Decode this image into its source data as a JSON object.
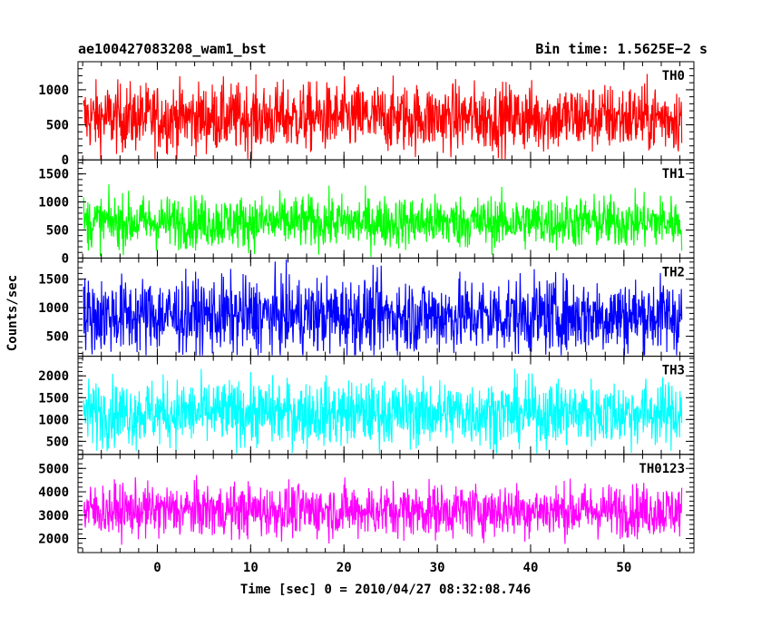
{
  "header": {
    "left": "ae100427083208_wam1_bst",
    "right": "Bin time: 1.5625E−2 s"
  },
  "chart_data": [
    {
      "type": "line",
      "panel": "TH0",
      "color": "#ff0000",
      "x_range": [
        -8.5,
        57.5
      ],
      "x_start": -7.9,
      "x_end": 56.2,
      "ylim": [
        0,
        1400
      ],
      "yticks": [
        0,
        500,
        1000
      ],
      "base": 600,
      "noise": 240,
      "clip_top": true,
      "series": [
        {
          "name": "TH0"
        }
      ]
    },
    {
      "type": "line",
      "panel": "TH1",
      "color": "#00ff00",
      "x_range": [
        -8.5,
        57.5
      ],
      "x_start": -7.9,
      "x_end": 56.2,
      "ylim": [
        0,
        1750
      ],
      "yticks": [
        0,
        500,
        1000,
        1500
      ],
      "base": 640,
      "noise": 230,
      "clip_top": false,
      "series": [
        {
          "name": "TH1"
        }
      ]
    },
    {
      "type": "line",
      "panel": "TH2",
      "color": "#0000ff",
      "x_range": [
        -8.5,
        57.5
      ],
      "x_start": -7.9,
      "x_end": 56.2,
      "ylim": [
        150,
        1870
      ],
      "yticks": [
        500,
        1000,
        1500
      ],
      "base": 860,
      "noise": 330,
      "clip_top": true,
      "series": [
        {
          "name": "TH2"
        }
      ]
    },
    {
      "type": "line",
      "panel": "TH3",
      "color": "#00ffff",
      "x_range": [
        -8.5,
        57.5
      ],
      "x_start": -7.9,
      "x_end": 56.2,
      "ylim": [
        200,
        2450
      ],
      "yticks": [
        500,
        1000,
        1500,
        2000
      ],
      "base": 1150,
      "noise": 370,
      "clip_top": false,
      "series": [
        {
          "name": "TH3"
        }
      ]
    },
    {
      "type": "line",
      "panel": "TH0123",
      "color": "#ff00ff",
      "x_range": [
        -8.5,
        57.5
      ],
      "x_start": -7.9,
      "x_end": 56.2,
      "ylim": [
        1400,
        5600
      ],
      "yticks": [
        2000,
        3000,
        4000,
        5000
      ],
      "base": 3200,
      "noise": 560,
      "clip_top": false,
      "series": [
        {
          "name": "TH0123"
        }
      ],
      "xticks": [
        0,
        10,
        20,
        30,
        40,
        50
      ]
    }
  ],
  "axes": {
    "ylabel": "Counts/sec",
    "xlabel": "Time [sec] 0 = 2010/04/27 08:32:08.746",
    "xticks": [
      0,
      10,
      20,
      30,
      40,
      50
    ]
  }
}
